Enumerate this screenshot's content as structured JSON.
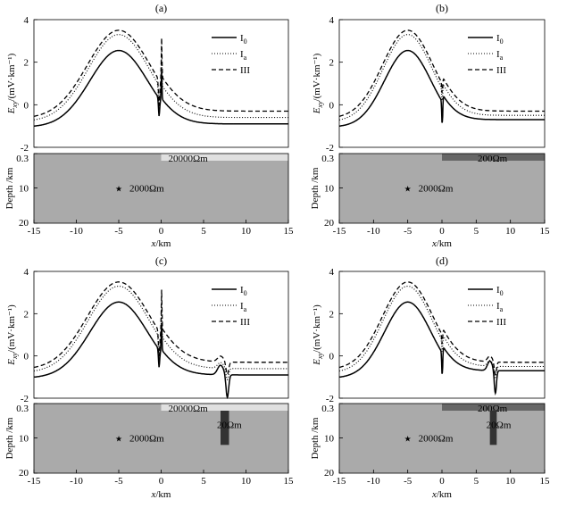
{
  "panels": [
    {
      "label": "(a)",
      "has_top_layer": true,
      "top_layer_color": "#e0e0e0",
      "top_layer_text": "20000Ωm",
      "has_block": false,
      "block_text": "",
      "source_text": "2000Ωm",
      "profile": "a"
    },
    {
      "label": "(b)",
      "has_top_layer": true,
      "top_layer_color": "#666666",
      "top_layer_text": "200Ωm",
      "has_block": false,
      "block_text": "",
      "source_text": "2000Ωm",
      "profile": "b"
    },
    {
      "label": "(c)",
      "has_top_layer": true,
      "top_layer_color": "#e0e0e0",
      "top_layer_text": "20000Ωm",
      "has_block": true,
      "block_text": "20Ωm",
      "source_text": "2000Ωm",
      "profile": "c"
    },
    {
      "label": "(d)",
      "has_top_layer": true,
      "top_layer_color": "#666666",
      "top_layer_text": "200Ωm",
      "has_block": true,
      "block_text": "20Ωm",
      "source_text": "2000Ωm",
      "profile": "d"
    }
  ],
  "legend": {
    "i0_base": "I",
    "i0_sub": "0",
    "ia_base": "I",
    "ia_sub": "a",
    "iii": "III"
  },
  "axes": {
    "ylabel_var": "E",
    "ylabel_sub": "xy",
    "ylabel_unit": "/(mV·km⁻¹)",
    "depth_label": "Depth /km",
    "xlabel_var": "x",
    "xlabel_unit": "/km",
    "yticks": [
      "4",
      "2",
      "0",
      "-2"
    ],
    "depth_ticks": [
      "0.3",
      "10",
      "20"
    ],
    "xticks": [
      "-15",
      "-10",
      "-5",
      "0",
      "5",
      "10",
      "15"
    ]
  },
  "chart_data": {
    "type": "line",
    "xlim": [
      -15,
      15
    ],
    "ylim": [
      -2,
      4
    ],
    "depth_range": [
      0.3,
      20
    ],
    "source": {
      "x": -5,
      "depth": 10
    },
    "top_layer_extent": [
      0,
      15
    ],
    "block_extent_x": [
      7,
      8
    ]
  }
}
